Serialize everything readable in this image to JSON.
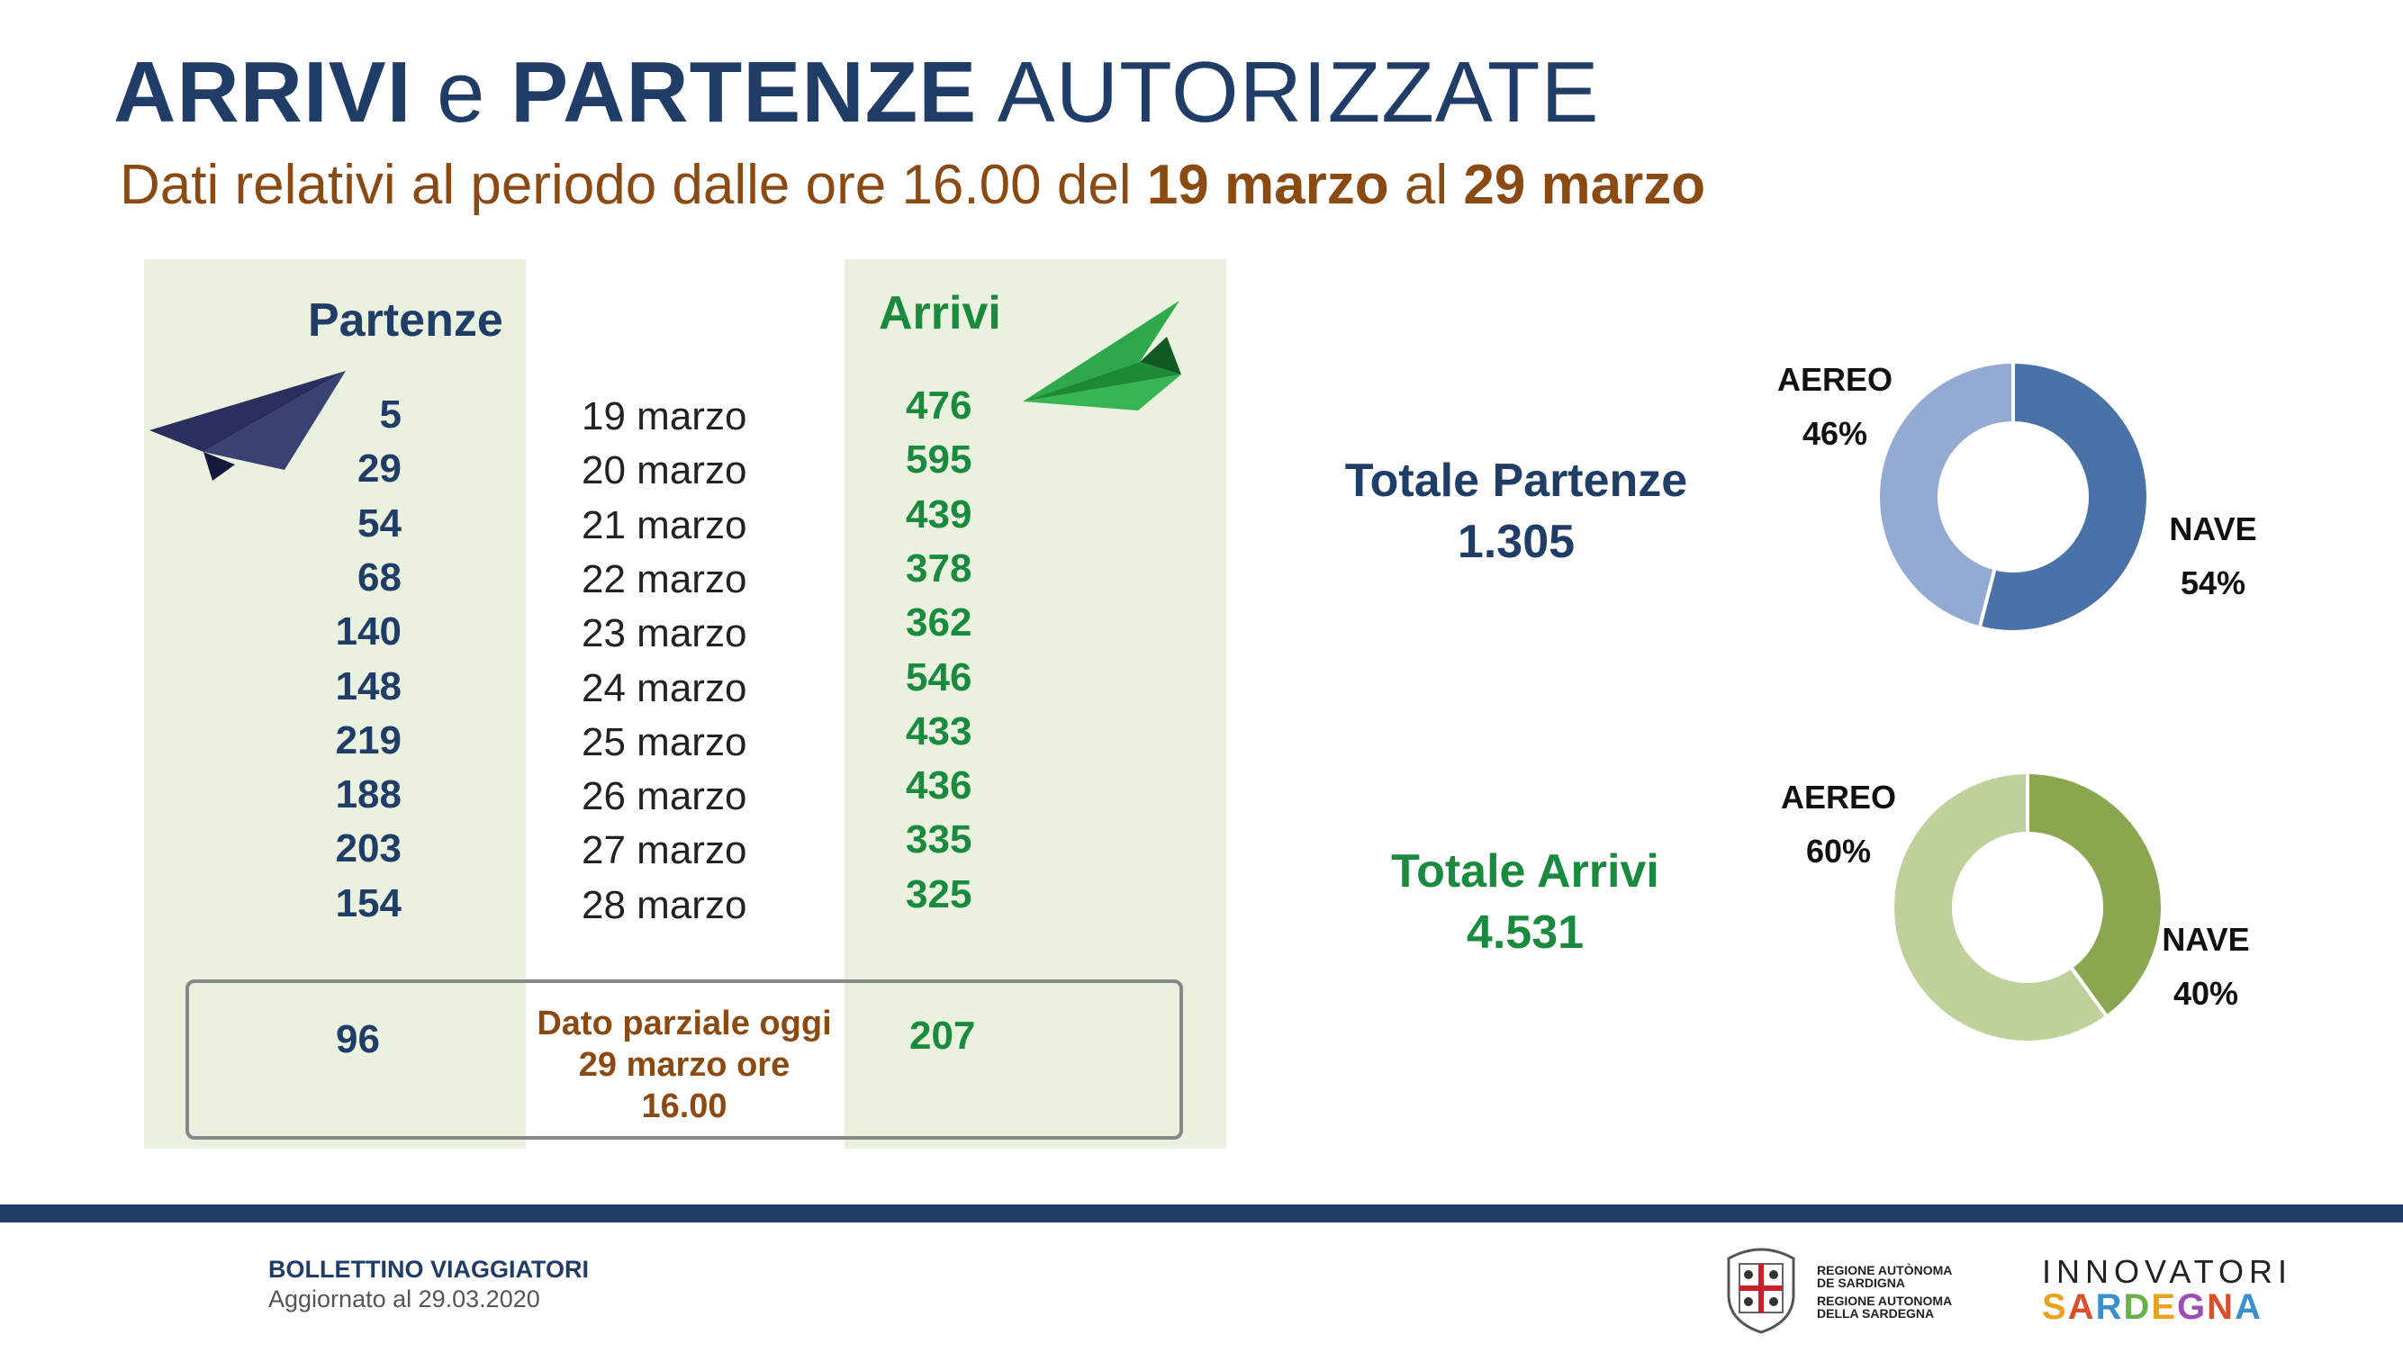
{
  "header": {
    "title_part1": "ARRIVI",
    "title_part2": "e",
    "title_part3": "PARTENZE",
    "title_part4": "AUTORIZZATE",
    "subtitle_part1": "Dati relativi al periodo dalle ore 16.00 del",
    "subtitle_part2": "19 marzo",
    "subtitle_part3": "al",
    "subtitle_part4": "29 marzo"
  },
  "table": {
    "partenze_header": "Partenze",
    "arrivi_header": "Arrivi",
    "partial_value_partenze": "96",
    "partial_value_arrivi": "207",
    "partial_label_line1": "Dato parziale oggi",
    "partial_label_line2": "29 marzo ore",
    "partial_label_line3": "16.00"
  },
  "chart_data": [
    {
      "type": "table",
      "columns": [
        "Partenze",
        "",
        "Arrivi"
      ],
      "rows": [
        {
          "partenze": 5,
          "date": "19 marzo",
          "arrivi": 476
        },
        {
          "partenze": 29,
          "date": "20 marzo",
          "arrivi": 595
        },
        {
          "partenze": 54,
          "date": "21 marzo",
          "arrivi": 439
        },
        {
          "partenze": 68,
          "date": "22 marzo",
          "arrivi": 378
        },
        {
          "partenze": 140,
          "date": "23 marzo",
          "arrivi": 362
        },
        {
          "partenze": 148,
          "date": "24 marzo",
          "arrivi": 546
        },
        {
          "partenze": 219,
          "date": "25 marzo",
          "arrivi": 433
        },
        {
          "partenze": 188,
          "date": "26 marzo",
          "arrivi": 436
        },
        {
          "partenze": 203,
          "date": "27 marzo",
          "arrivi": 335
        },
        {
          "partenze": 154,
          "date": "28 marzo",
          "arrivi": 325
        }
      ]
    },
    {
      "type": "pie",
      "title_line1": "Totale Partenze",
      "title_line2": "1.305",
      "slices": [
        {
          "label": "NAVE",
          "value": 54,
          "display": "54%",
          "color": "#4a72a8"
        },
        {
          "label": "AEREO",
          "value": 46,
          "display": "46%",
          "color": "#93aad2"
        }
      ]
    },
    {
      "type": "pie",
      "title_line1": "Totale Arrivi",
      "title_line2": "4.531",
      "slices": [
        {
          "label": "NAVE",
          "value": 40,
          "display": "40%",
          "color": "#8aa64f"
        },
        {
          "label": "AEREO",
          "value": 60,
          "display": "60%",
          "color": "#bfd19a"
        }
      ]
    }
  ],
  "footer": {
    "title": "BOLLETTINO VIAGGIATORI",
    "subtitle": "Aggiornato al 29.03.2020",
    "region_line1": "REGIONE AUTÒNOMA",
    "region_line2": "DE SARDIGNA",
    "region_line3": "REGIONE AUTONOMA",
    "region_line4": "DELLA SARDEGNA",
    "innov_line1": "INNOVATORI",
    "innov_line2": "SARDEGNA"
  },
  "colors": {
    "navy": "#1f3d66",
    "brown": "#8b4a12",
    "green": "#1a8a3e",
    "panel": "#eaf1df"
  }
}
